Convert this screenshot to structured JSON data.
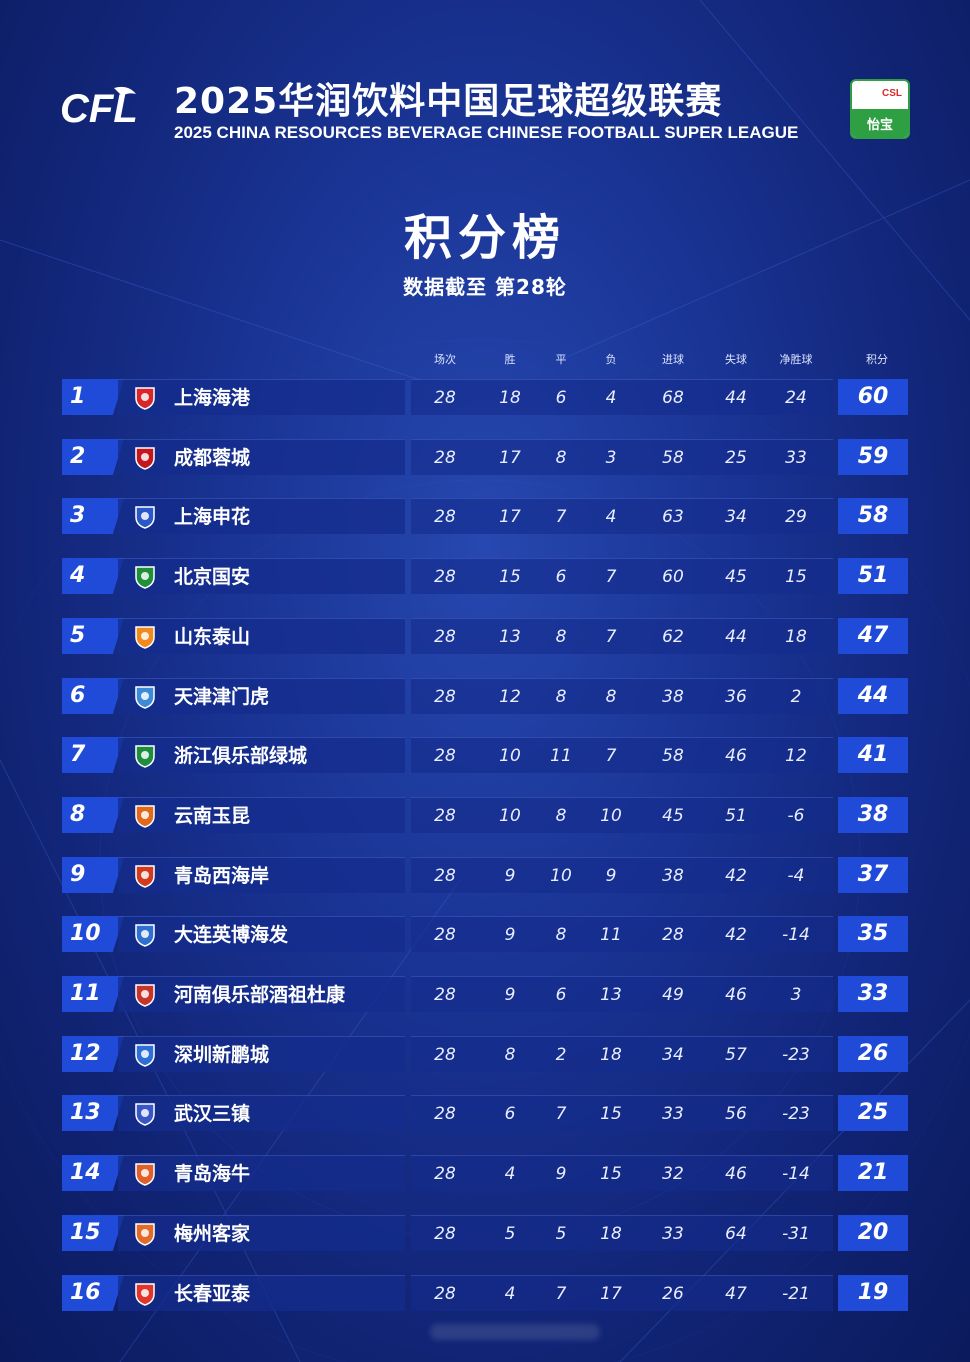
{
  "header": {
    "logo_text": "CFL",
    "title_cn": "2025华润饮料中国足球超级联赛",
    "title_en": "2025 CHINA RESOURCES BEVERAGE CHINESE FOOTBALL SUPER LEAGUE",
    "badge_top": "CSL",
    "badge_bottom": "怡宝"
  },
  "page": {
    "title": "积分榜",
    "subtitle": "数据截至 第28轮"
  },
  "columns": {
    "played": "场次",
    "won": "胜",
    "drawn": "平",
    "lost": "负",
    "gf": "进球",
    "ga": "失球",
    "gd": "净胜球",
    "pts": "积分"
  },
  "colors": {
    "accent": "#1f4bd8",
    "row_bg": "#142c8c",
    "background": "#1a3596"
  },
  "rows": [
    {
      "rank": "1",
      "team": "上海海港",
      "crest": "haigang-crest",
      "crest_color": "#d8262b",
      "played": "28",
      "won": "18",
      "drawn": "6",
      "lost": "4",
      "gf": "68",
      "ga": "44",
      "gd": "24",
      "pts": "60"
    },
    {
      "rank": "2",
      "team": "成都蓉城",
      "crest": "rongcheng-crest",
      "crest_color": "#c4161c",
      "played": "28",
      "won": "17",
      "drawn": "8",
      "lost": "3",
      "gf": "58",
      "ga": "25",
      "gd": "33",
      "pts": "59"
    },
    {
      "rank": "3",
      "team": "上海申花",
      "crest": "shenhua-crest",
      "crest_color": "#2a58c8",
      "played": "28",
      "won": "17",
      "drawn": "7",
      "lost": "4",
      "gf": "63",
      "ga": "34",
      "gd": "29",
      "pts": "58"
    },
    {
      "rank": "4",
      "team": "北京国安",
      "crest": "guoan-crest",
      "crest_color": "#1f8f3a",
      "played": "28",
      "won": "15",
      "drawn": "6",
      "lost": "7",
      "gf": "60",
      "ga": "45",
      "gd": "15",
      "pts": "51"
    },
    {
      "rank": "5",
      "team": "山东泰山",
      "crest": "taishan-crest",
      "crest_color": "#f08a1c",
      "played": "28",
      "won": "13",
      "drawn": "8",
      "lost": "7",
      "gf": "62",
      "ga": "44",
      "gd": "18",
      "pts": "47"
    },
    {
      "rank": "6",
      "team": "天津津门虎",
      "crest": "jinmenhu-crest",
      "crest_color": "#3c8ad8",
      "played": "28",
      "won": "12",
      "drawn": "8",
      "lost": "8",
      "gf": "38",
      "ga": "36",
      "gd": "2",
      "pts": "44"
    },
    {
      "rank": "7",
      "team": "浙江俱乐部绿城",
      "crest": "lvcheng-crest",
      "crest_color": "#1e8e3e",
      "played": "28",
      "won": "10",
      "drawn": "11",
      "lost": "7",
      "gf": "58",
      "ga": "46",
      "gd": "12",
      "pts": "41"
    },
    {
      "rank": "8",
      "team": "云南玉昆",
      "crest": "yukun-crest",
      "crest_color": "#e06a1a",
      "played": "28",
      "won": "10",
      "drawn": "8",
      "lost": "10",
      "gf": "45",
      "ga": "51",
      "gd": "-6",
      "pts": "38"
    },
    {
      "rank": "9",
      "team": "青岛西海岸",
      "crest": "xihaian-crest",
      "crest_color": "#d23a1e",
      "played": "28",
      "won": "9",
      "drawn": "10",
      "lost": "9",
      "gf": "38",
      "ga": "42",
      "gd": "-4",
      "pts": "37"
    },
    {
      "rank": "10",
      "team": "大连英博海发",
      "crest": "yingbo-crest",
      "crest_color": "#2f6fd0",
      "played": "28",
      "won": "9",
      "drawn": "8",
      "lost": "11",
      "gf": "28",
      "ga": "42",
      "gd": "-14",
      "pts": "35"
    },
    {
      "rank": "11",
      "team": "河南俱乐部酒祖杜康",
      "crest": "henan-crest",
      "crest_color": "#c8332a",
      "played": "28",
      "won": "9",
      "drawn": "6",
      "lost": "13",
      "gf": "49",
      "ga": "46",
      "gd": "3",
      "pts": "33"
    },
    {
      "rank": "12",
      "team": "深圳新鹏城",
      "crest": "xinpengcheng-crest",
      "crest_color": "#2d6fd6",
      "played": "28",
      "won": "8",
      "drawn": "2",
      "lost": "18",
      "gf": "34",
      "ga": "57",
      "gd": "-23",
      "pts": "26"
    },
    {
      "rank": "13",
      "team": "武汉三镇",
      "crest": "sanzhen-crest",
      "crest_color": "#3856c8",
      "played": "28",
      "won": "6",
      "drawn": "7",
      "lost": "15",
      "gf": "33",
      "ga": "56",
      "gd": "-23",
      "pts": "25"
    },
    {
      "rank": "14",
      "team": "青岛海牛",
      "crest": "hainiu-crest",
      "crest_color": "#e0602a",
      "played": "28",
      "won": "4",
      "drawn": "9",
      "lost": "15",
      "gf": "32",
      "ga": "46",
      "gd": "-14",
      "pts": "21"
    },
    {
      "rank": "15",
      "team": "梅州客家",
      "crest": "kejia-crest",
      "crest_color": "#e36b28",
      "played": "28",
      "won": "5",
      "drawn": "5",
      "lost": "18",
      "gf": "33",
      "ga": "64",
      "gd": "-31",
      "pts": "20"
    },
    {
      "rank": "16",
      "team": "长春亚泰",
      "crest": "yatai-crest",
      "crest_color": "#e0352a",
      "played": "28",
      "won": "4",
      "drawn": "7",
      "lost": "17",
      "gf": "26",
      "ga": "47",
      "gd": "-21",
      "pts": "19"
    }
  ]
}
